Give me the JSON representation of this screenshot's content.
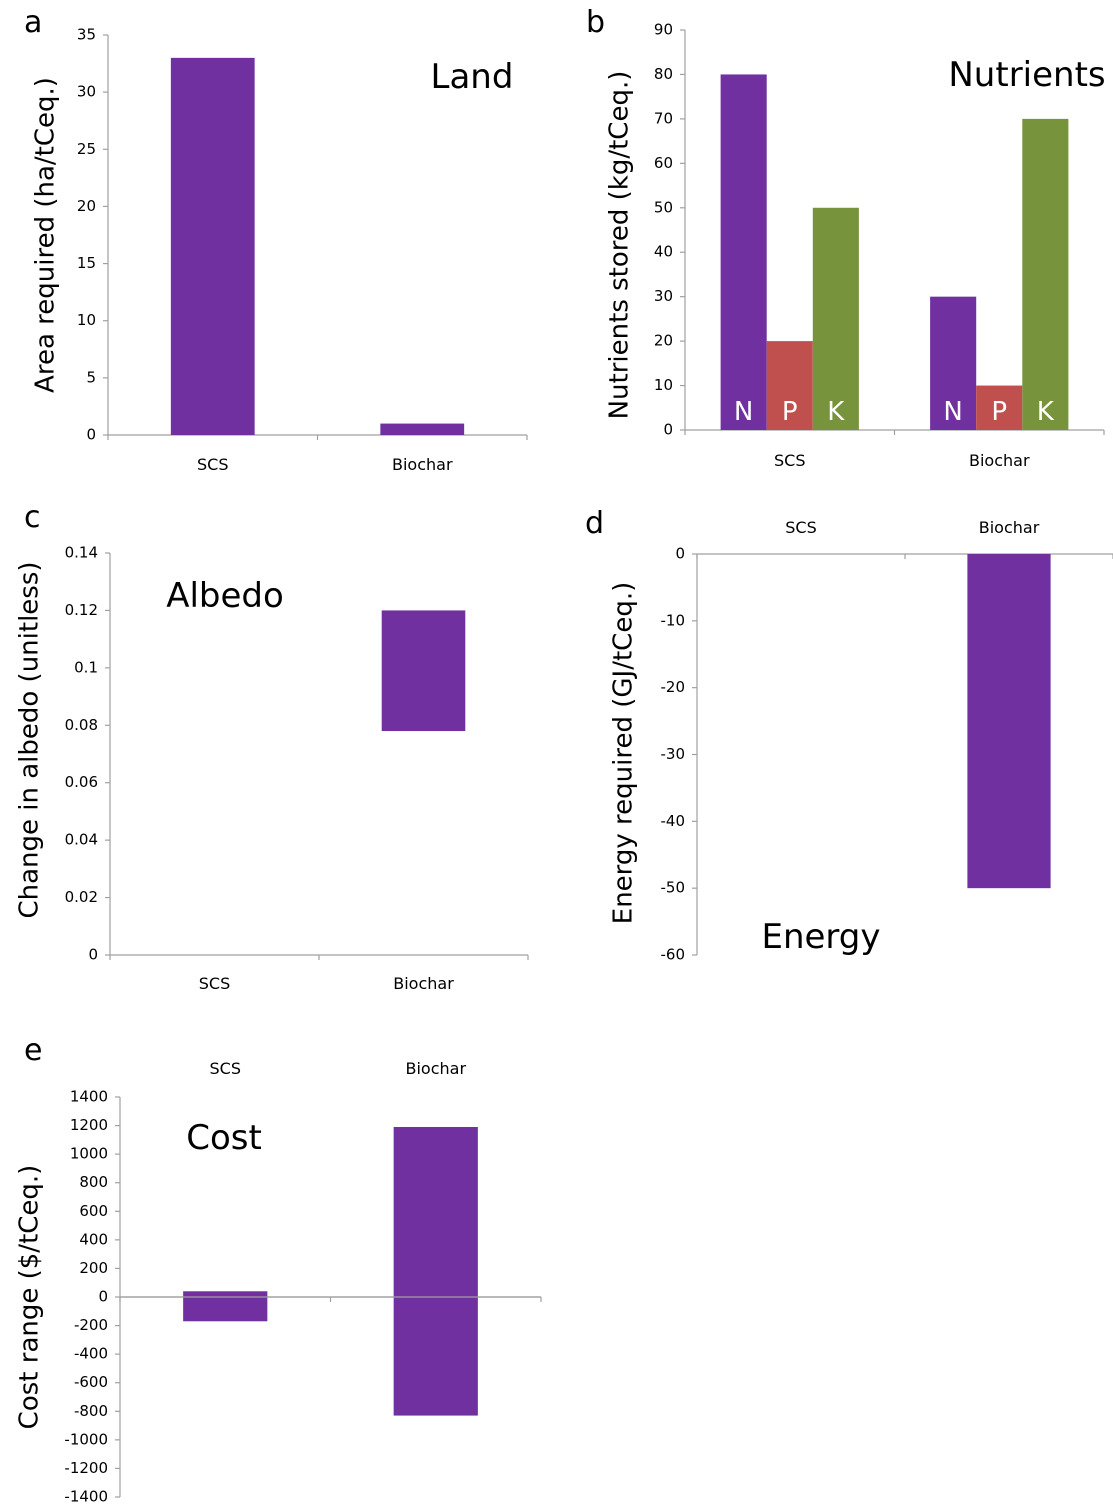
{
  "colors": {
    "purple": "#7030a0",
    "red": "#c0504d",
    "green": "#77933c",
    "axis": "#a0a0a0"
  },
  "chart_data": [
    {
      "id": "a",
      "type": "bar",
      "panel_label": "a",
      "title": "Land",
      "ylabel": "Area required (ha/tCeq.)",
      "categories": [
        "SCS",
        "Biochar"
      ],
      "ylim": [
        0,
        35
      ],
      "yticks": [
        "0",
        "5",
        "10",
        "15",
        "20",
        "25",
        "30",
        "35"
      ],
      "category_axis_position": "bottom",
      "bars": [
        {
          "category": 0,
          "from": 0,
          "to": 33
        },
        {
          "category": 1,
          "from": 0,
          "to": 1
        }
      ]
    },
    {
      "id": "b",
      "type": "bar",
      "panel_label": "b",
      "title": "Nutrients",
      "ylabel": "Nutrients stored (kg/tCeq.)",
      "categories": [
        "SCS",
        "Biochar"
      ],
      "ylim": [
        0,
        90
      ],
      "yticks": [
        "0",
        "10",
        "20",
        "30",
        "40",
        "50",
        "60",
        "70",
        "80",
        "90"
      ],
      "category_axis_position": "bottom",
      "series": [
        {
          "label": "N",
          "color": "#7030a0",
          "values": [
            80,
            30
          ]
        },
        {
          "label": "P",
          "color": "#c0504d",
          "values": [
            20,
            10
          ]
        },
        {
          "label": "K",
          "color": "#77933c",
          "values": [
            50,
            70
          ]
        }
      ]
    },
    {
      "id": "c",
      "type": "bar",
      "panel_label": "c",
      "title": "Albedo",
      "ylabel": "Change in albedo (unitless)",
      "categories": [
        "SCS",
        "Biochar"
      ],
      "ylim": [
        0,
        0.14
      ],
      "yticks": [
        "0",
        "0.02",
        "0.04",
        "0.06",
        "0.08",
        "0.1",
        "0.12",
        "0.14"
      ],
      "category_axis_position": "bottom",
      "bars": [
        {
          "category": 1,
          "from": 0.078,
          "to": 0.12
        }
      ]
    },
    {
      "id": "d",
      "type": "bar",
      "panel_label": "d",
      "title": "Energy",
      "ylabel": "Energy required (GJ/tCeq.)",
      "categories": [
        "SCS",
        "Biochar"
      ],
      "ylim": [
        -60,
        0
      ],
      "yticks": [
        "-60",
        "-50",
        "-40",
        "-30",
        "-20",
        "-10",
        "0"
      ],
      "category_axis_position": "top",
      "bars": [
        {
          "category": 1,
          "from": 0,
          "to": -50
        }
      ]
    },
    {
      "id": "e",
      "type": "bar",
      "panel_label": "e",
      "title": "Cost",
      "ylabel": "Cost range ($/tCeq.)",
      "categories": [
        "SCS",
        "Biochar"
      ],
      "ylim": [
        -1400,
        1400
      ],
      "yticks": [
        "-1400",
        "-1200",
        "-1000",
        "-800",
        "-600",
        "-400",
        "-200",
        "0",
        "200",
        "400",
        "600",
        "800",
        "1000",
        "1200",
        "1400"
      ],
      "category_axis_position": "top",
      "bars": [
        {
          "category": 0,
          "from": -170,
          "to": 40
        },
        {
          "category": 1,
          "from": -830,
          "to": 1190
        }
      ]
    }
  ]
}
